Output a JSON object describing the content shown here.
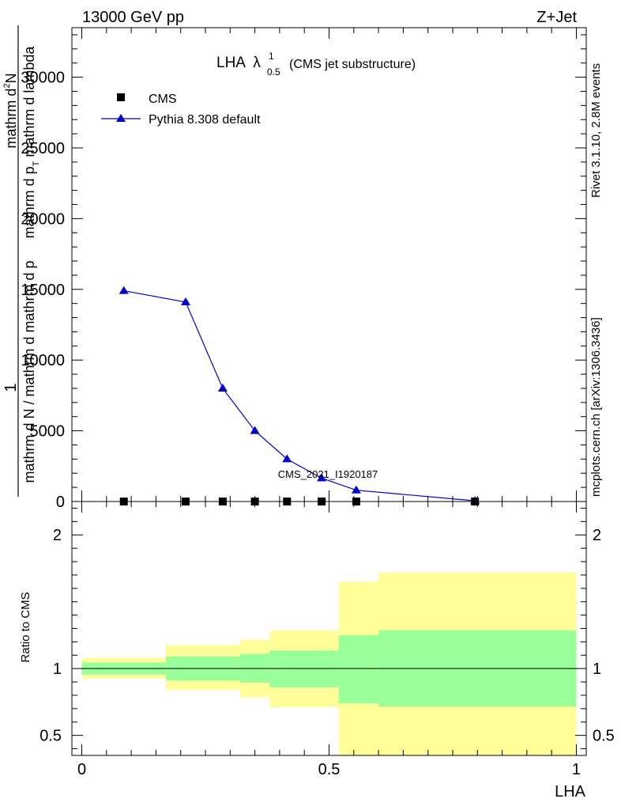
{
  "header": {
    "left": "13000 GeV pp",
    "right": "Z+Jet"
  },
  "side": {
    "rivet": "Rivet 3.1.10,  2.8M events",
    "mcplots": "mcplots.cern.ch [arXiv:1306.3436]"
  },
  "chart_data": [
    {
      "type": "line",
      "title": "LHA",
      "title_symbol": "λ",
      "title_sup": "1",
      "title_sub": "0.5",
      "subtitle": "(CMS jet substructure)",
      "watermark": "CMS_2021_I1920187",
      "ylabel": {
        "numerator": "1",
        "denominator": "mathrm d N / mathrm d mathrm d p",
        "line1": "mathrm d",
        "line1_sup": "2",
        "line1_end": "N",
        "line2": "mathrm d p",
        "line2_sub": "T",
        "line2_end": " mathrm d lambda"
      },
      "xlim": [
        -0.02,
        1.02
      ],
      "ylim": [
        0,
        33500
      ],
      "yticks": [
        0,
        5000,
        10000,
        15000,
        20000,
        25000,
        30000
      ],
      "ytick_labels": [
        "0",
        "5000",
        "10000",
        "15000",
        "20000",
        "25000",
        "30000"
      ],
      "legend": [
        "CMS",
        "Pythia 8.308 default"
      ],
      "legend_position": "top-left",
      "series": [
        {
          "name": "CMS",
          "marker": "square",
          "color": "#000000",
          "x": [
            0.085,
            0.21,
            0.285,
            0.35,
            0.415,
            0.485,
            0.555,
            0.795
          ],
          "y": [
            0,
            0,
            0,
            0,
            0,
            0,
            0,
            0
          ]
        },
        {
          "name": "Pythia 8.308 default",
          "marker": "triangle",
          "color": "#0000cc",
          "x": [
            0.085,
            0.21,
            0.285,
            0.35,
            0.415,
            0.485,
            0.555,
            0.795
          ],
          "y": [
            14900,
            14100,
            8000,
            5000,
            3000,
            1650,
            800,
            50
          ]
        }
      ]
    },
    {
      "type": "area",
      "ylabel": "Ratio to CMS",
      "xlabel": "LHA",
      "xlim": [
        -0.02,
        1.02
      ],
      "ylim": [
        0.35,
        2.25
      ],
      "yticks": [
        0.5,
        1,
        2
      ],
      "ytick_labels": [
        "0.5",
        "1",
        "2"
      ],
      "xticks": [
        0,
        0.5,
        1
      ],
      "xtick_labels": [
        "0",
        "0.5",
        "1"
      ],
      "reference_line": 1,
      "bins": [
        {
          "x0": 0.0,
          "x1": 0.17,
          "green": [
            0.955,
            1.045
          ],
          "yellow": [
            0.925,
            1.08
          ]
        },
        {
          "x0": 0.17,
          "x1": 0.32,
          "green": [
            0.91,
            1.09
          ],
          "yellow": [
            0.84,
            1.175
          ]
        },
        {
          "x0": 0.32,
          "x1": 0.38,
          "green": [
            0.895,
            1.11
          ],
          "yellow": [
            0.785,
            1.215
          ]
        },
        {
          "x0": 0.38,
          "x1": 0.52,
          "green": [
            0.86,
            1.135
          ],
          "yellow": [
            0.71,
            1.285
          ]
        },
        {
          "x0": 0.52,
          "x1": 0.6,
          "green": [
            0.74,
            1.25
          ],
          "yellow": [
            0.35,
            1.65
          ]
        },
        {
          "x0": 0.6,
          "x1": 1.0,
          "green": [
            0.715,
            1.285
          ],
          "yellow": [
            0.35,
            1.72
          ]
        }
      ],
      "colors": {
        "green": "#99ff99",
        "yellow": "#ffff99"
      }
    }
  ]
}
